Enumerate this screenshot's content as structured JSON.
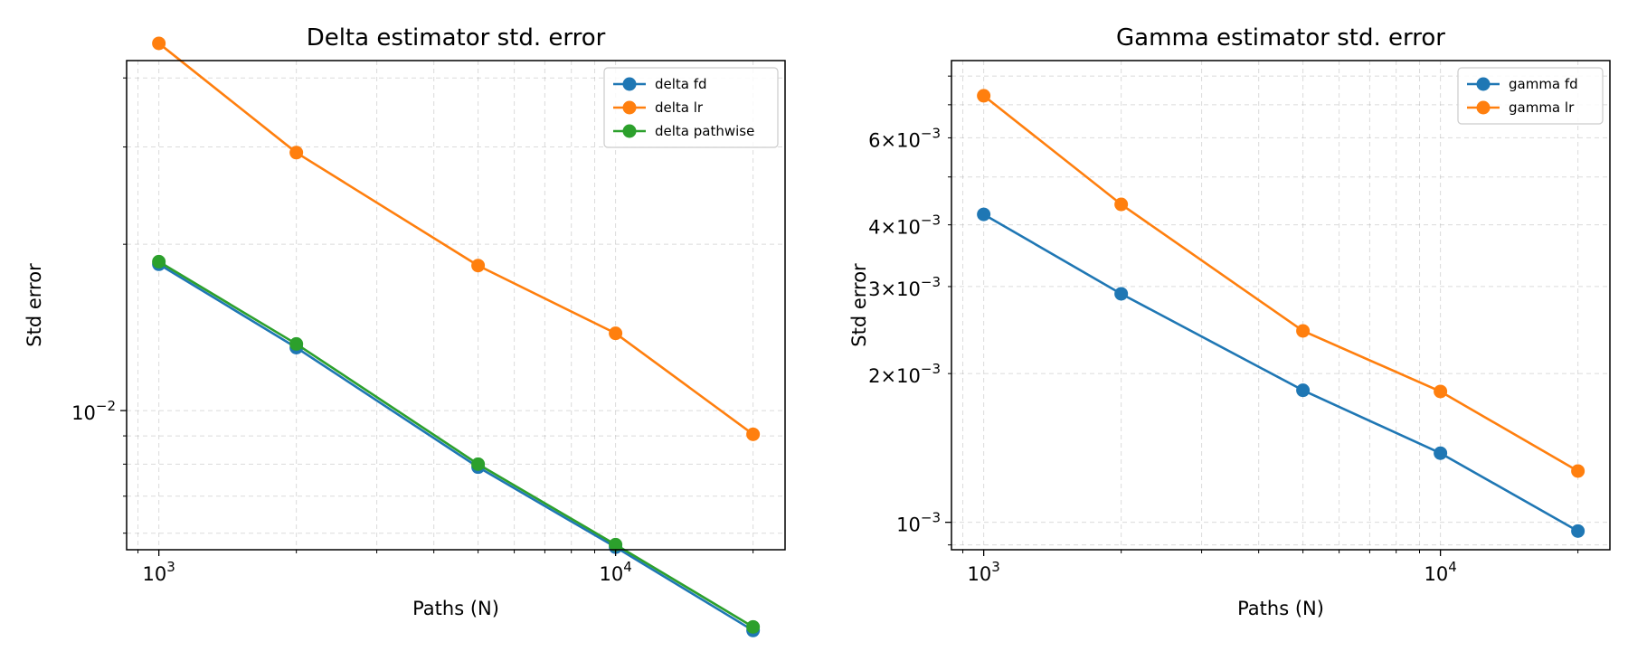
{
  "chart_data": [
    {
      "type": "line",
      "title": "Delta estimator std. error",
      "xlabel": "Paths (N)",
      "ylabel": "Std error",
      "xscale": "log",
      "yscale": "log",
      "xlim": [
        850,
        23500
      ],
      "ylim": [
        0.0056,
        0.043
      ],
      "x": [
        1000,
        2000,
        5000,
        10000,
        20000
      ],
      "xticks": [
        {
          "value": 1000,
          "base": "10",
          "exp": "3"
        },
        {
          "value": 10000,
          "base": "10",
          "exp": "4"
        }
      ],
      "yticks": [
        {
          "value": 0.01,
          "base": "10",
          "exp": "−2"
        }
      ],
      "grid": true,
      "legend_position": "top-right",
      "series": [
        {
          "name": "delta fd",
          "color": "#1f77b4",
          "values": [
            0.0184,
            0.013,
            0.0079,
            0.00566,
            0.004
          ]
        },
        {
          "name": "delta lr",
          "color": "#ff7f0e",
          "values": [
            0.0462,
            0.0293,
            0.0183,
            0.0138,
            0.00906
          ]
        },
        {
          "name": "delta pathwise",
          "color": "#2ca02c",
          "values": [
            0.0186,
            0.0132,
            0.008,
            0.00572,
            0.00406
          ]
        }
      ]
    },
    {
      "type": "line",
      "title": "Gamma estimator std. error",
      "xlabel": "Paths (N)",
      "ylabel": "Std error",
      "xscale": "log",
      "yscale": "log",
      "xlim": [
        850,
        23500
      ],
      "ylim": [
        0.00088,
        0.0086
      ],
      "x": [
        1000,
        2000,
        5000,
        10000,
        20000
      ],
      "xticks": [
        {
          "value": 1000,
          "base": "10",
          "exp": "3"
        },
        {
          "value": 10000,
          "base": "10",
          "exp": "4"
        }
      ],
      "yticks": [
        {
          "value": 0.001,
          "mant": "",
          "base": "10",
          "exp": "−3"
        },
        {
          "value": 0.002,
          "mant": "2",
          "base": "10",
          "exp": "−3"
        },
        {
          "value": 0.003,
          "mant": "3",
          "base": "10",
          "exp": "−3"
        },
        {
          "value": 0.004,
          "mant": "4",
          "base": "10",
          "exp": "−3"
        },
        {
          "value": 0.006,
          "mant": "6",
          "base": "10",
          "exp": "−3"
        }
      ],
      "grid": true,
      "legend_position": "top-right",
      "series": [
        {
          "name": "gamma fd",
          "color": "#1f77b4",
          "values": [
            0.0042,
            0.0029,
            0.00185,
            0.00138,
            0.00096
          ]
        },
        {
          "name": "gamma lr",
          "color": "#ff7f0e",
          "values": [
            0.0073,
            0.0044,
            0.00244,
            0.00184,
            0.00127
          ]
        }
      ]
    }
  ]
}
